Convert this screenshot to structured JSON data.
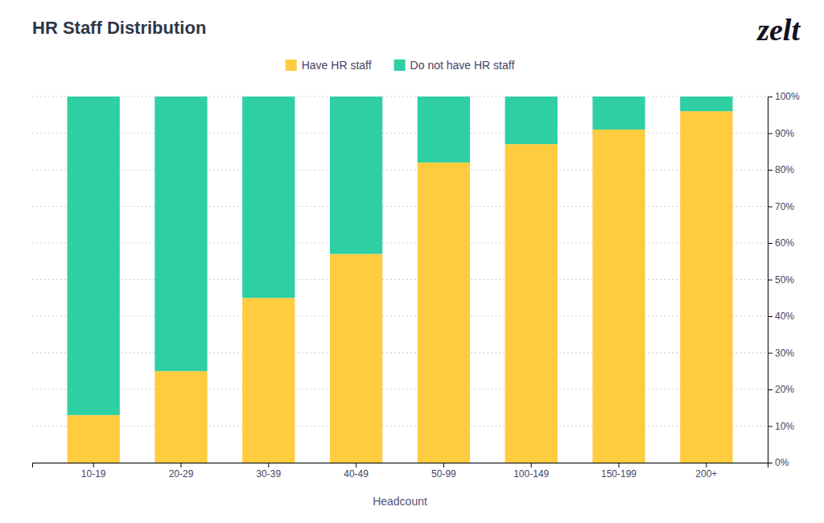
{
  "chart_data": {
    "type": "bar",
    "stacked": true,
    "title": "HR Staff Distribution",
    "xlabel": "Headcount",
    "categories": [
      "10-19",
      "20-29",
      "30-39",
      "40-49",
      "50-99",
      "100-149",
      "150-199",
      "200+"
    ],
    "series": [
      {
        "name": "Have HR staff",
        "color": "#FFCC40",
        "values": [
          13,
          25,
          45,
          57,
          82,
          87,
          91,
          96
        ]
      },
      {
        "name": "Do not have HR staff",
        "color": "#2ECFA3",
        "values": [
          87,
          75,
          55,
          43,
          18,
          13,
          9,
          4
        ]
      }
    ],
    "ylim": [
      0,
      100
    ],
    "yticks": [
      {
        "value": 0,
        "label": "0%"
      },
      {
        "value": 10,
        "label": "10%"
      },
      {
        "value": 20,
        "label": "20%"
      },
      {
        "value": 30,
        "label": "30%"
      },
      {
        "value": 40,
        "label": "40%"
      },
      {
        "value": 50,
        "label": "50%"
      },
      {
        "value": 60,
        "label": "60%"
      },
      {
        "value": 70,
        "label": "70%"
      },
      {
        "value": 80,
        "label": "80%"
      },
      {
        "value": 90,
        "label": "90%"
      },
      {
        "value": 100,
        "label": "100%"
      }
    ],
    "grid": true,
    "legend": "top",
    "annotations": [
      "zelt"
    ]
  }
}
